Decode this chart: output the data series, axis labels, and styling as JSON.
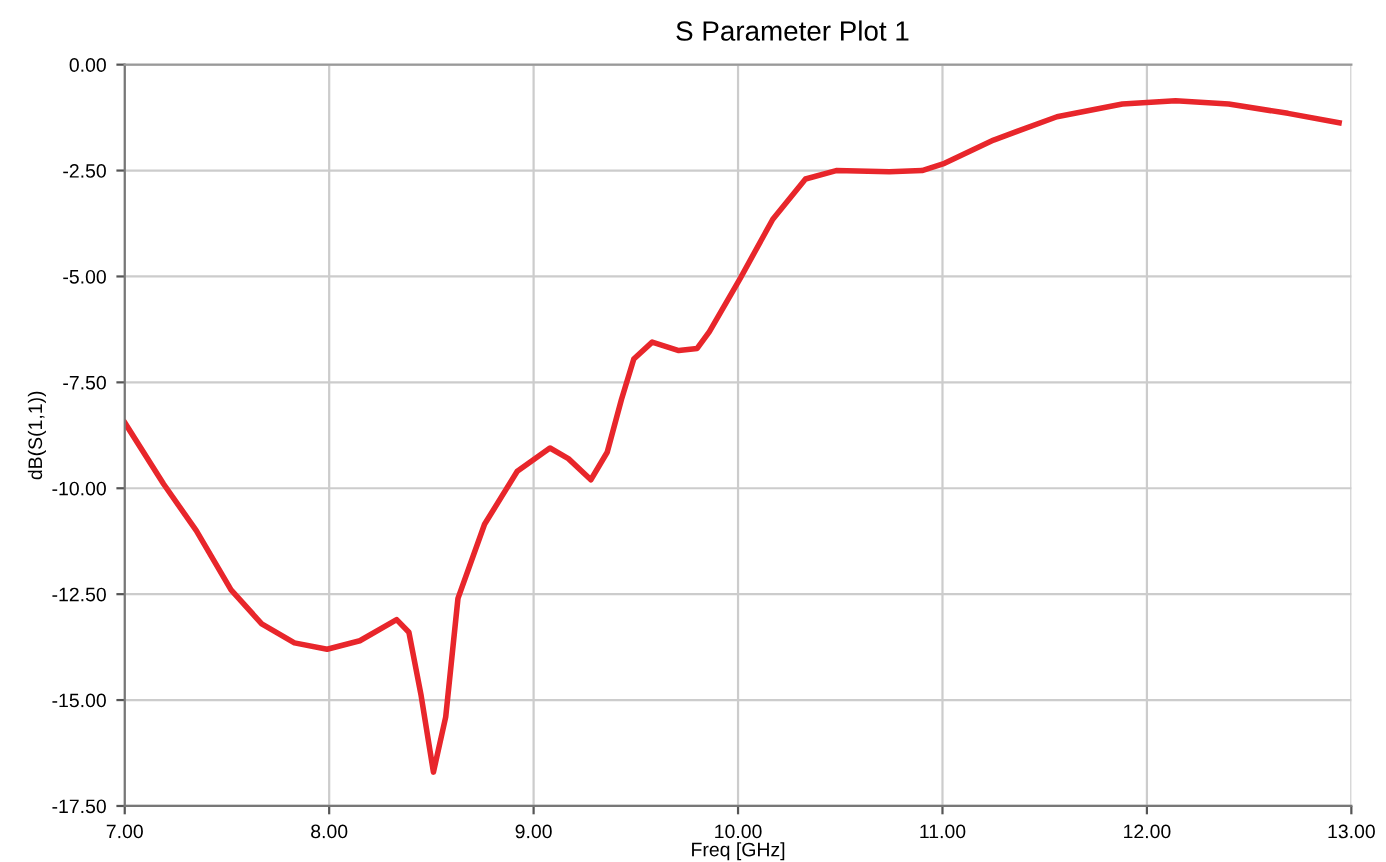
{
  "chart_data": {
    "type": "line",
    "title": "S Parameter Plot 1",
    "xlabel": "Freq [GHz]",
    "ylabel": "dB(S(1,1))",
    "xlim": [
      7,
      13
    ],
    "ylim": [
      -17.5,
      0
    ],
    "xticks": [
      {
        "value": 7,
        "label": "7.00"
      },
      {
        "value": 8,
        "label": "8.00"
      },
      {
        "value": 9,
        "label": "9.00"
      },
      {
        "value": 10,
        "label": "10.00"
      },
      {
        "value": 11,
        "label": "11.00"
      },
      {
        "value": 12,
        "label": "12.00"
      },
      {
        "value": 13,
        "label": "13.00"
      }
    ],
    "yticks": [
      {
        "value": 0,
        "label": "0.00"
      },
      {
        "value": -2.5,
        "label": "-2.50"
      },
      {
        "value": -5,
        "label": "-5.00"
      },
      {
        "value": -7.5,
        "label": "-7.50"
      },
      {
        "value": -10,
        "label": "-10.00"
      },
      {
        "value": -12.5,
        "label": "-12.50"
      },
      {
        "value": -15,
        "label": "-15.00"
      },
      {
        "value": -17.5,
        "label": "-17.50"
      }
    ],
    "grid": true,
    "marker": "none",
    "line_style": "solid",
    "series": [
      {
        "color": "#e8262b",
        "x": [
          7.0,
          7.19,
          7.35,
          7.52,
          7.67,
          7.83,
          7.99,
          8.15,
          8.33,
          8.39,
          8.45,
          8.51,
          8.57,
          8.63,
          8.76,
          8.92,
          9.08,
          9.17,
          9.28,
          9.36,
          9.43,
          9.49,
          9.58,
          9.71,
          9.8,
          9.86,
          10.01,
          10.17,
          10.33,
          10.48,
          10.74,
          10.9,
          11.01,
          11.25,
          11.56,
          11.88,
          12.14,
          12.4,
          12.69,
          12.94
        ],
        "values": [
          -8.45,
          -9.9,
          -11.0,
          -12.4,
          -13.2,
          -13.65,
          -13.8,
          -13.6,
          -13.1,
          -13.4,
          -14.9,
          -16.7,
          -15.4,
          -12.6,
          -10.85,
          -9.6,
          -9.05,
          -9.3,
          -9.8,
          -9.15,
          -7.9,
          -6.95,
          -6.55,
          -6.75,
          -6.7,
          -6.3,
          -5.05,
          -3.65,
          -2.7,
          -2.5,
          -2.53,
          -2.5,
          -2.33,
          -1.78,
          -1.23,
          -0.93,
          -0.85,
          -0.93,
          -1.15,
          -1.37
        ]
      }
    ]
  }
}
